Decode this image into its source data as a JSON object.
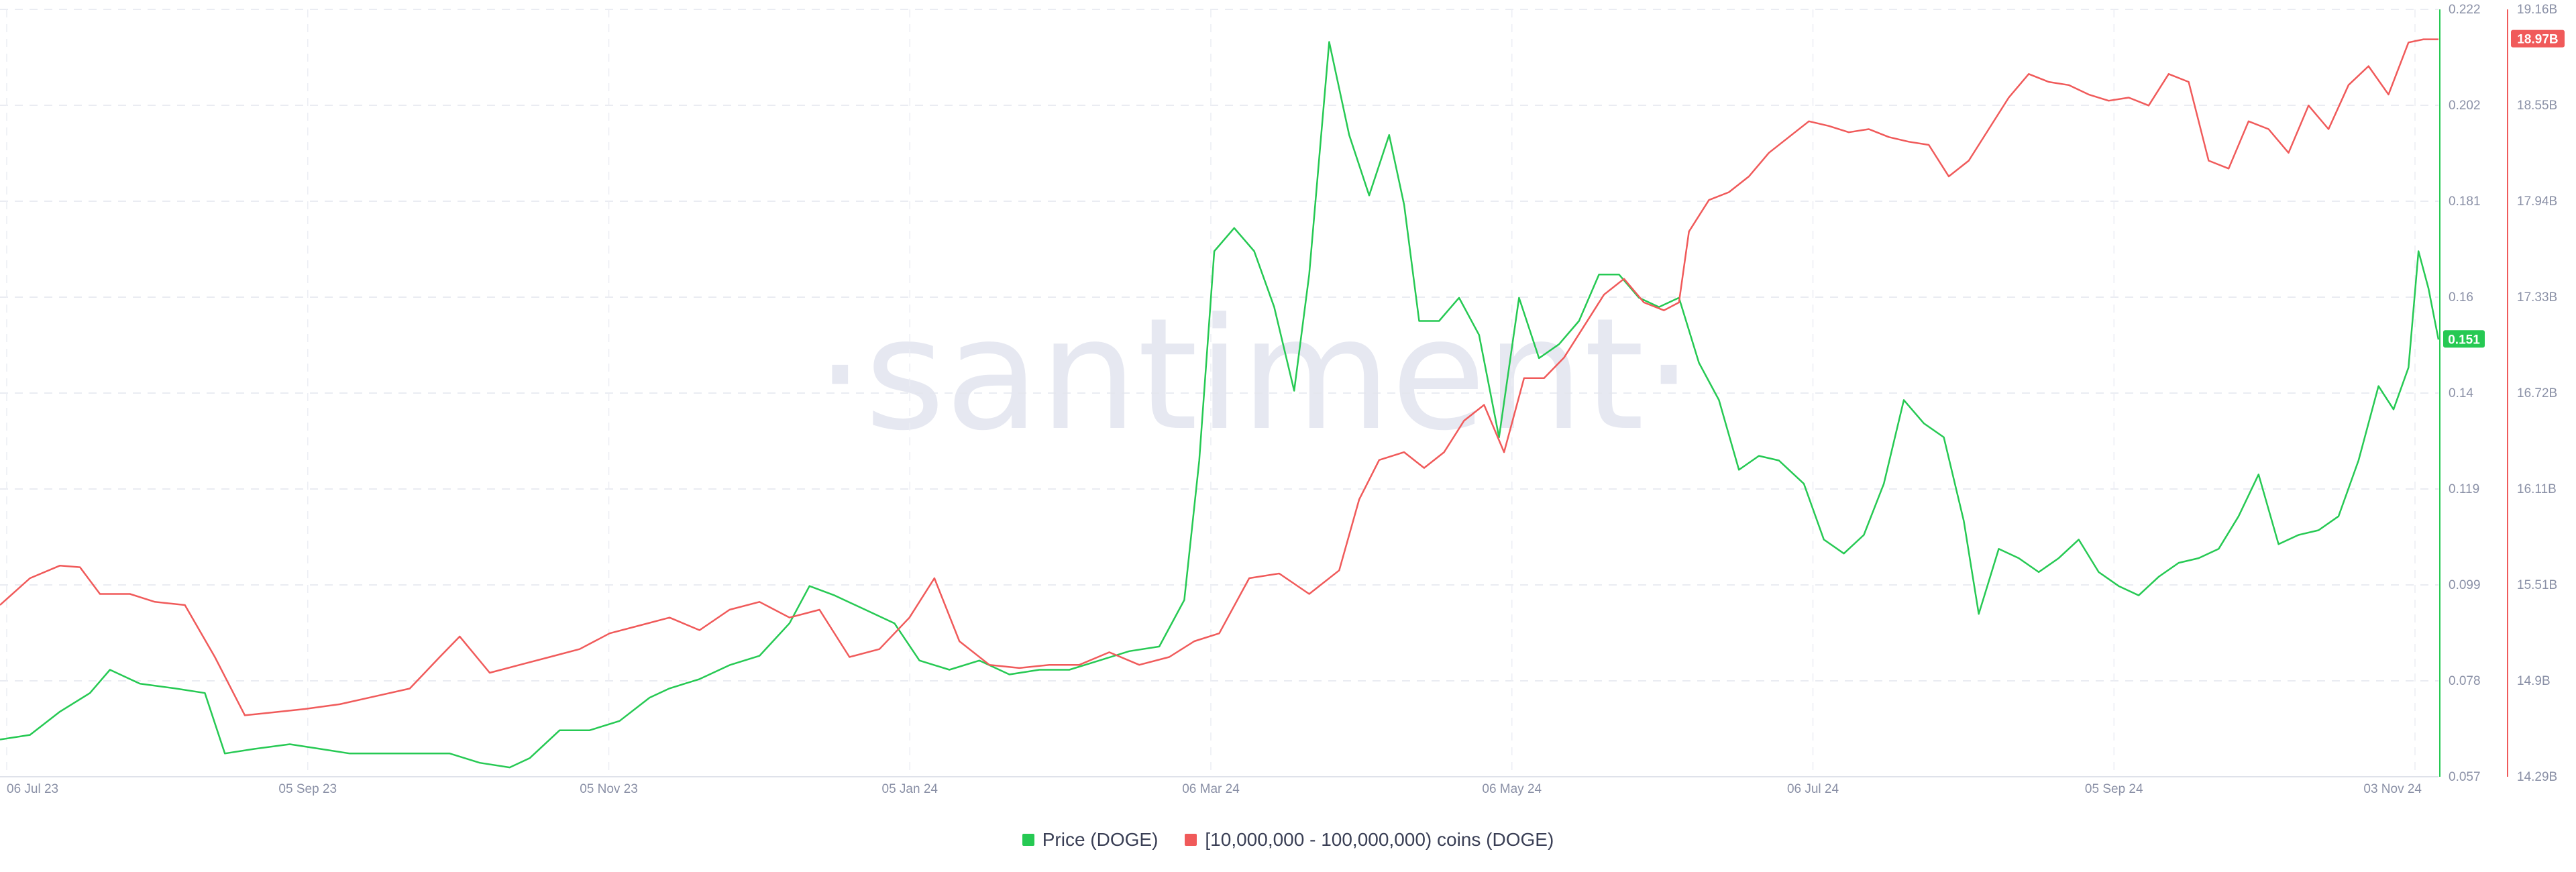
{
  "chart_data": {
    "type": "line",
    "watermark": "·santiment·",
    "x_ticks": [
      "06 Jul 23",
      "05 Sep 23",
      "05 Nov 23",
      "05 Jan 24",
      "06 Mar 24",
      "06 May 24",
      "06 Jul 24",
      "05 Sep 24",
      "03 Nov 24"
    ],
    "x_range": [
      "2023-07-06",
      "2024-11-05"
    ],
    "y_left": {
      "ticks": [
        "0.222",
        "0.202",
        "0.181",
        "0.16",
        "0.14",
        "0.119",
        "0.099",
        "0.078",
        "0.057"
      ],
      "min": 0.057,
      "max": 0.222
    },
    "y_right": {
      "ticks": [
        "19.16B",
        "18.55B",
        "17.94B",
        "17.33B",
        "16.72B",
        "16.11B",
        "15.51B",
        "14.9B",
        "14.29B"
      ],
      "min": 14.29,
      "max": 19.16,
      "unit": "B"
    },
    "grid": true,
    "legend_position": "bottom-center",
    "series": [
      {
        "name": "Price (DOGE)",
        "color": "#26c953",
        "axis": "left",
        "last_value_label": "0.151",
        "points": [
          [
            "2023-07-06",
            0.065
          ],
          [
            "2023-07-12",
            0.066
          ],
          [
            "2023-07-18",
            0.071
          ],
          [
            "2023-07-24",
            0.075
          ],
          [
            "2023-07-28",
            0.08
          ],
          [
            "2023-08-03",
            0.077
          ],
          [
            "2023-08-10",
            0.076
          ],
          [
            "2023-08-16",
            0.075
          ],
          [
            "2023-08-20",
            0.062
          ],
          [
            "2023-08-26",
            0.063
          ],
          [
            "2023-09-02",
            0.064
          ],
          [
            "2023-09-08",
            0.063
          ],
          [
            "2023-09-14",
            0.062
          ],
          [
            "2023-09-20",
            0.062
          ],
          [
            "2023-09-26",
            0.062
          ],
          [
            "2023-10-04",
            0.062
          ],
          [
            "2023-10-10",
            0.06
          ],
          [
            "2023-10-16",
            0.059
          ],
          [
            "2023-10-20",
            0.061
          ],
          [
            "2023-10-26",
            0.067
          ],
          [
            "2023-11-01",
            0.067
          ],
          [
            "2023-11-07",
            0.069
          ],
          [
            "2023-11-13",
            0.074
          ],
          [
            "2023-11-17",
            0.076
          ],
          [
            "2023-11-23",
            0.078
          ],
          [
            "2023-11-29",
            0.081
          ],
          [
            "2023-12-05",
            0.083
          ],
          [
            "2023-12-11",
            0.09
          ],
          [
            "2023-12-15",
            0.098
          ],
          [
            "2023-12-20",
            0.096
          ],
          [
            "2023-12-26",
            0.093
          ],
          [
            "2024-01-01",
            0.09
          ],
          [
            "2024-01-06",
            0.082
          ],
          [
            "2024-01-12",
            0.08
          ],
          [
            "2024-01-18",
            0.082
          ],
          [
            "2024-01-24",
            0.079
          ],
          [
            "2024-01-30",
            0.08
          ],
          [
            "2024-02-05",
            0.08
          ],
          [
            "2024-02-11",
            0.082
          ],
          [
            "2024-02-17",
            0.084
          ],
          [
            "2024-02-23",
            0.085
          ],
          [
            "2024-02-28",
            0.095
          ],
          [
            "2024-03-02",
            0.125
          ],
          [
            "2024-03-05",
            0.17
          ],
          [
            "2024-03-09",
            0.175
          ],
          [
            "2024-03-13",
            0.17
          ],
          [
            "2024-03-17",
            0.158
          ],
          [
            "2024-03-21",
            0.14
          ],
          [
            "2024-03-24",
            0.165
          ],
          [
            "2024-03-28",
            0.215
          ],
          [
            "2024-04-01",
            0.195
          ],
          [
            "2024-04-05",
            0.182
          ],
          [
            "2024-04-09",
            0.195
          ],
          [
            "2024-04-12",
            0.18
          ],
          [
            "2024-04-15",
            0.155
          ],
          [
            "2024-04-19",
            0.155
          ],
          [
            "2024-04-23",
            0.16
          ],
          [
            "2024-04-27",
            0.152
          ],
          [
            "2024-05-01",
            0.13
          ],
          [
            "2024-05-05",
            0.16
          ],
          [
            "2024-05-09",
            0.147
          ],
          [
            "2024-05-13",
            0.15
          ],
          [
            "2024-05-17",
            0.155
          ],
          [
            "2024-05-21",
            0.165
          ],
          [
            "2024-05-25",
            0.165
          ],
          [
            "2024-05-29",
            0.16
          ],
          [
            "2024-06-02",
            0.158
          ],
          [
            "2024-06-06",
            0.16
          ],
          [
            "2024-06-10",
            0.146
          ],
          [
            "2024-06-14",
            0.138
          ],
          [
            "2024-06-18",
            0.123
          ],
          [
            "2024-06-22",
            0.126
          ],
          [
            "2024-06-26",
            0.125
          ],
          [
            "2024-07-01",
            0.12
          ],
          [
            "2024-07-05",
            0.108
          ],
          [
            "2024-07-09",
            0.105
          ],
          [
            "2024-07-13",
            0.109
          ],
          [
            "2024-07-17",
            0.12
          ],
          [
            "2024-07-21",
            0.138
          ],
          [
            "2024-07-25",
            0.133
          ],
          [
            "2024-07-29",
            0.13
          ],
          [
            "2024-08-02",
            0.112
          ],
          [
            "2024-08-05",
            0.092
          ],
          [
            "2024-08-09",
            0.106
          ],
          [
            "2024-08-13",
            0.104
          ],
          [
            "2024-08-17",
            0.101
          ],
          [
            "2024-08-21",
            0.104
          ],
          [
            "2024-08-25",
            0.108
          ],
          [
            "2024-08-29",
            0.101
          ],
          [
            "2024-09-02",
            0.098
          ],
          [
            "2024-09-06",
            0.096
          ],
          [
            "2024-09-10",
            0.1
          ],
          [
            "2024-09-14",
            0.103
          ],
          [
            "2024-09-18",
            0.104
          ],
          [
            "2024-09-22",
            0.106
          ],
          [
            "2024-09-26",
            0.113
          ],
          [
            "2024-09-30",
            0.122
          ],
          [
            "2024-10-04",
            0.107
          ],
          [
            "2024-10-08",
            0.109
          ],
          [
            "2024-10-12",
            0.11
          ],
          [
            "2024-10-16",
            0.113
          ],
          [
            "2024-10-20",
            0.125
          ],
          [
            "2024-10-24",
            0.141
          ],
          [
            "2024-10-27",
            0.136
          ],
          [
            "2024-10-30",
            0.145
          ],
          [
            "2024-11-01",
            0.17
          ],
          [
            "2024-11-03",
            0.162
          ],
          [
            "2024-11-05",
            0.151
          ]
        ]
      },
      {
        "name": "[10,000,000 - 100,000,000) coins (DOGE)",
        "color": "#f05a5a",
        "axis": "right",
        "last_value_label": "18.97B",
        "points": [
          [
            "2023-07-06",
            15.38
          ],
          [
            "2023-07-12",
            15.55
          ],
          [
            "2023-07-18",
            15.63
          ],
          [
            "2023-07-22",
            15.62
          ],
          [
            "2023-07-26",
            15.45
          ],
          [
            "2023-08-01",
            15.45
          ],
          [
            "2023-08-06",
            15.4
          ],
          [
            "2023-08-12",
            15.38
          ],
          [
            "2023-08-18",
            15.05
          ],
          [
            "2023-08-24",
            14.68
          ],
          [
            "2023-08-30",
            14.7
          ],
          [
            "2023-09-05",
            14.72
          ],
          [
            "2023-09-12",
            14.75
          ],
          [
            "2023-09-19",
            14.8
          ],
          [
            "2023-09-26",
            14.85
          ],
          [
            "2023-10-02",
            15.05
          ],
          [
            "2023-10-06",
            15.18
          ],
          [
            "2023-10-12",
            14.95
          ],
          [
            "2023-10-18",
            15.0
          ],
          [
            "2023-10-24",
            15.05
          ],
          [
            "2023-10-30",
            15.1
          ],
          [
            "2023-11-05",
            15.2
          ],
          [
            "2023-11-11",
            15.25
          ],
          [
            "2023-11-17",
            15.3
          ],
          [
            "2023-11-23",
            15.22
          ],
          [
            "2023-11-29",
            15.35
          ],
          [
            "2023-12-05",
            15.4
          ],
          [
            "2023-12-11",
            15.3
          ],
          [
            "2023-12-17",
            15.35
          ],
          [
            "2023-12-23",
            15.05
          ],
          [
            "2023-12-29",
            15.1
          ],
          [
            "2024-01-04",
            15.3
          ],
          [
            "2024-01-09",
            15.55
          ],
          [
            "2024-01-14",
            15.15
          ],
          [
            "2024-01-20",
            15.0
          ],
          [
            "2024-01-26",
            14.98
          ],
          [
            "2024-02-01",
            15.0
          ],
          [
            "2024-02-07",
            15.0
          ],
          [
            "2024-02-13",
            15.08
          ],
          [
            "2024-02-19",
            15.0
          ],
          [
            "2024-02-25",
            15.05
          ],
          [
            "2024-03-01",
            15.15
          ],
          [
            "2024-03-06",
            15.2
          ],
          [
            "2024-03-12",
            15.55
          ],
          [
            "2024-03-18",
            15.58
          ],
          [
            "2024-03-24",
            15.45
          ],
          [
            "2024-03-30",
            15.6
          ],
          [
            "2024-04-03",
            16.05
          ],
          [
            "2024-04-07",
            16.3
          ],
          [
            "2024-04-12",
            16.35
          ],
          [
            "2024-04-16",
            16.25
          ],
          [
            "2024-04-20",
            16.35
          ],
          [
            "2024-04-24",
            16.55
          ],
          [
            "2024-04-28",
            16.65
          ],
          [
            "2024-05-02",
            16.35
          ],
          [
            "2024-05-06",
            16.82
          ],
          [
            "2024-05-10",
            16.82
          ],
          [
            "2024-05-14",
            16.95
          ],
          [
            "2024-05-18",
            17.15
          ],
          [
            "2024-05-22",
            17.35
          ],
          [
            "2024-05-26",
            17.45
          ],
          [
            "2024-05-30",
            17.3
          ],
          [
            "2024-06-03",
            17.25
          ],
          [
            "2024-06-06",
            17.3
          ],
          [
            "2024-06-08",
            17.75
          ],
          [
            "2024-06-12",
            17.95
          ],
          [
            "2024-06-16",
            18.0
          ],
          [
            "2024-06-20",
            18.1
          ],
          [
            "2024-06-24",
            18.25
          ],
          [
            "2024-06-28",
            18.35
          ],
          [
            "2024-07-02",
            18.45
          ],
          [
            "2024-07-06",
            18.42
          ],
          [
            "2024-07-10",
            18.38
          ],
          [
            "2024-07-14",
            18.4
          ],
          [
            "2024-07-18",
            18.35
          ],
          [
            "2024-07-22",
            18.32
          ],
          [
            "2024-07-26",
            18.3
          ],
          [
            "2024-07-30",
            18.1
          ],
          [
            "2024-08-03",
            18.2
          ],
          [
            "2024-08-07",
            18.4
          ],
          [
            "2024-08-11",
            18.6
          ],
          [
            "2024-08-15",
            18.75
          ],
          [
            "2024-08-19",
            18.7
          ],
          [
            "2024-08-23",
            18.68
          ],
          [
            "2024-08-27",
            18.62
          ],
          [
            "2024-08-31",
            18.58
          ],
          [
            "2024-09-04",
            18.6
          ],
          [
            "2024-09-08",
            18.55
          ],
          [
            "2024-09-12",
            18.75
          ],
          [
            "2024-09-16",
            18.7
          ],
          [
            "2024-09-20",
            18.2
          ],
          [
            "2024-09-24",
            18.15
          ],
          [
            "2024-09-28",
            18.45
          ],
          [
            "2024-10-02",
            18.4
          ],
          [
            "2024-10-06",
            18.25
          ],
          [
            "2024-10-10",
            18.55
          ],
          [
            "2024-10-14",
            18.4
          ],
          [
            "2024-10-18",
            18.68
          ],
          [
            "2024-10-22",
            18.8
          ],
          [
            "2024-10-26",
            18.62
          ],
          [
            "2024-10-30",
            18.95
          ],
          [
            "2024-11-02",
            18.97
          ],
          [
            "2024-11-05",
            18.97
          ]
        ]
      }
    ]
  }
}
